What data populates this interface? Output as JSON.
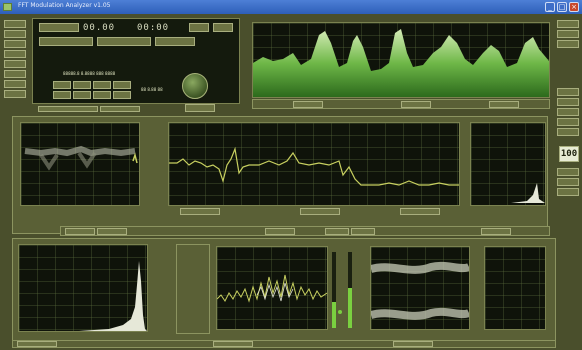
{
  "window": {
    "title": "FFT Modulation Analyzer v1.05",
    "controls": {
      "minimize": "_",
      "maximize": "□",
      "close": "×"
    }
  },
  "top_readout": {
    "digits_1": "00.00",
    "digits_2": "00:00",
    "status_text": "88888.8 8.8888 888 8888",
    "caption": "88 8.88 88"
  },
  "right_value": "100",
  "colors": {
    "background": "#4a4f2c",
    "trace_green": "#b8d060",
    "trace_white": "#e6e8d8",
    "spectrum_green": "#5da83a"
  },
  "icons": [
    "app-icon",
    "knob-icon",
    "led-indicator-icon"
  ]
}
